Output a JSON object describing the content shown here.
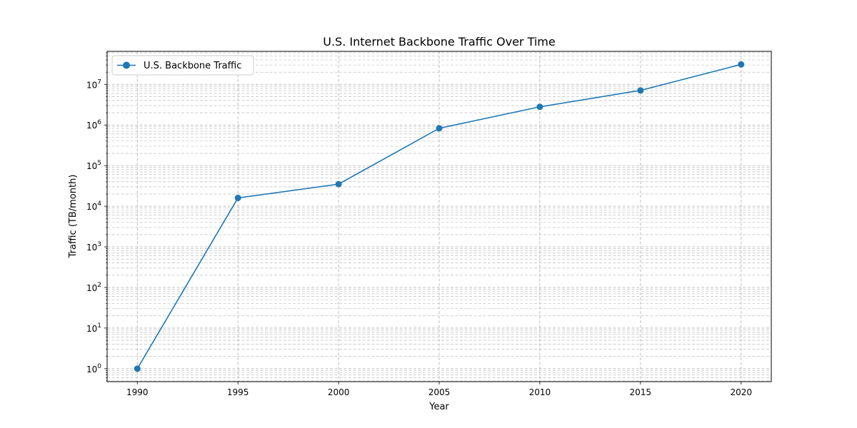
{
  "chart_data": {
    "type": "line",
    "title": "U.S. Internet Backbone Traffic Over Time",
    "xlabel": "Year",
    "ylabel": "Traffic (TB/month)",
    "yscale": "log",
    "grid": true,
    "legend_position": "top-left",
    "x": [
      1990,
      1995,
      2000,
      2005,
      2010,
      2015,
      2020
    ],
    "xlim": [
      1988.5,
      2021.5
    ],
    "ylim": [
      0.48,
      65000000
    ],
    "x_ticks": [
      "1990",
      "1995",
      "2000",
      "2005",
      "2010",
      "2015",
      "2020"
    ],
    "y_ticks": [
      {
        "base": "10",
        "exp": "0"
      },
      {
        "base": "10",
        "exp": "1"
      },
      {
        "base": "10",
        "exp": "2"
      },
      {
        "base": "10",
        "exp": "3"
      },
      {
        "base": "10",
        "exp": "4"
      },
      {
        "base": "10",
        "exp": "5"
      },
      {
        "base": "10",
        "exp": "6"
      },
      {
        "base": "10",
        "exp": "7"
      }
    ],
    "series": [
      {
        "name": "U.S. Backbone Traffic",
        "color": "#1f77b4",
        "marker": "circle",
        "values": [
          1,
          16000,
          35000,
          830000,
          2800000,
          7100000,
          31000000
        ]
      }
    ]
  }
}
